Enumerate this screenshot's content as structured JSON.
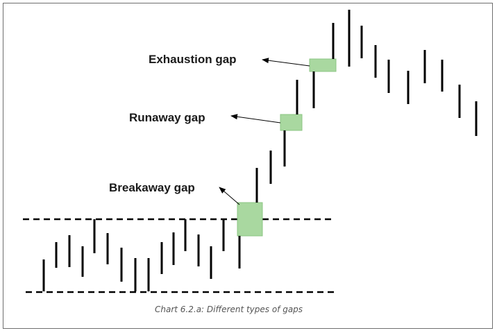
{
  "diagram": {
    "caption": "Chart 6.2.a: Different types of gaps",
    "colors": {
      "bar": "#000000",
      "gap_fill": "#a9d8a0",
      "gap_stroke": "#8cc683",
      "arrow": "#000000",
      "dashed_line": "#000000"
    },
    "labels": {
      "exhaustion": "Exhaustion gap",
      "runaway": "Runaway gap",
      "breakaway": "Breakaway gap"
    }
  }
}
